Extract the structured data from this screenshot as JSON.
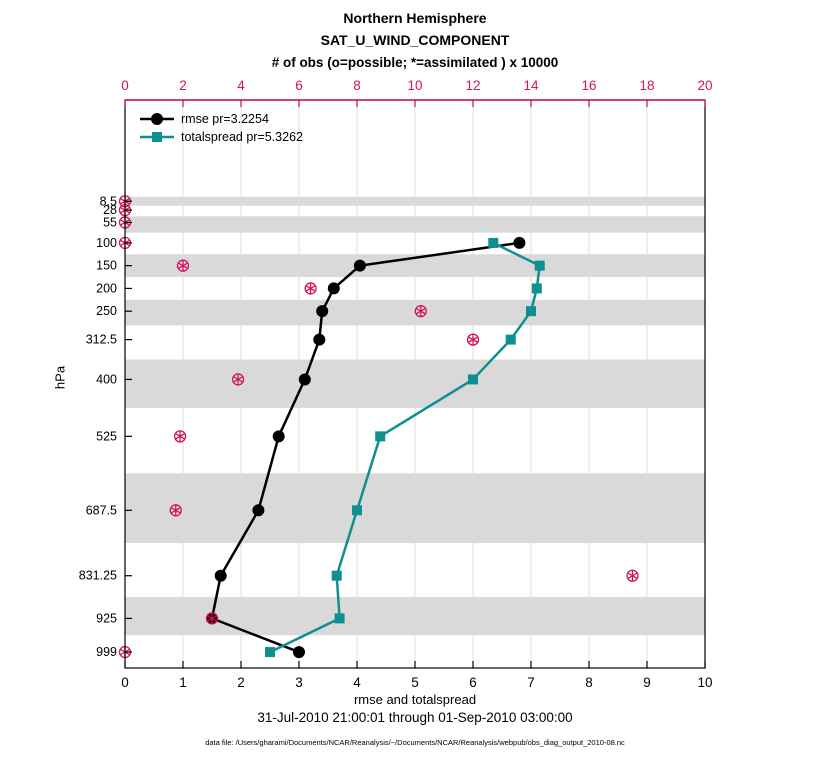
{
  "chart_data": {
    "type": "line",
    "title": "Northern Hemisphere",
    "subtitle": "SAT_U_WIND_COMPONENT",
    "top_axis_title": "# of obs (o=possible; *=assimilated ) x 10000",
    "xlabel": "rmse and totalspread",
    "ylabel": "hPa",
    "footer_dates": "31-Jul-2010 21:00:01 through 01-Sep-2010 03:00:00",
    "footer_datafile": "data file: /Users/gharami/Documents/NCAR/Reanalysis/~/Documents/NCAR/Reanalysis/webpub/obs_diag_output_2010-08.nc",
    "colors": {
      "obs_pink": "#d2135c",
      "rmse_black": "#000000",
      "totalspread_teal": "#0f8f8f",
      "band_gray": "#d9d9d9",
      "gridline": "#dcdcdc"
    },
    "x_bottom": {
      "min": 0,
      "max": 10,
      "ticks": [
        0,
        1,
        2,
        3,
        4,
        5,
        6,
        7,
        8,
        9,
        10
      ]
    },
    "x_top": {
      "min": 0,
      "max": 20,
      "ticks": [
        0,
        2,
        4,
        6,
        8,
        10,
        12,
        14,
        16,
        18,
        20
      ]
    },
    "levels": [
      8.5,
      28,
      55,
      100,
      150,
      200,
      250,
      312.5,
      400,
      525,
      687.5,
      831.25,
      925,
      999
    ],
    "series": [
      {
        "name": "rmse pr=3.2254",
        "marker": "circle",
        "color": "#000000",
        "points": [
          {
            "level": 100,
            "value": 6.8
          },
          {
            "level": 150,
            "value": 4.05
          },
          {
            "level": 200,
            "value": 3.6
          },
          {
            "level": 250,
            "value": 3.4
          },
          {
            "level": 312.5,
            "value": 3.35
          },
          {
            "level": 400,
            "value": 3.1
          },
          {
            "level": 525,
            "value": 2.65
          },
          {
            "level": 687.5,
            "value": 2.3
          },
          {
            "level": 831.25,
            "value": 1.65
          },
          {
            "level": 925,
            "value": 1.5
          },
          {
            "level": 999,
            "value": 3.0
          }
        ]
      },
      {
        "name": "totalspread pr=5.3262",
        "marker": "square",
        "color": "#0f8f8f",
        "points": [
          {
            "level": 100,
            "value": 6.35
          },
          {
            "level": 150,
            "value": 7.15
          },
          {
            "level": 200,
            "value": 7.1
          },
          {
            "level": 250,
            "value": 7.0
          },
          {
            "level": 312.5,
            "value": 6.65
          },
          {
            "level": 400,
            "value": 6.0
          },
          {
            "level": 525,
            "value": 4.4
          },
          {
            "level": 687.5,
            "value": 4.0
          },
          {
            "level": 831.25,
            "value": 3.65
          },
          {
            "level": 925,
            "value": 3.7
          },
          {
            "level": 999,
            "value": 2.5
          }
        ]
      }
    ],
    "obs_counts_x10000": [
      {
        "level": 8.5,
        "value": 0
      },
      {
        "level": 28,
        "value": 0
      },
      {
        "level": 55,
        "value": 0
      },
      {
        "level": 100,
        "value": 0
      },
      {
        "level": 150,
        "value": 2.0
      },
      {
        "level": 200,
        "value": 6.4
      },
      {
        "level": 250,
        "value": 10.2
      },
      {
        "level": 312.5,
        "value": 12.0
      },
      {
        "level": 400,
        "value": 3.9
      },
      {
        "level": 525,
        "value": 1.9
      },
      {
        "level": 687.5,
        "value": 1.75
      },
      {
        "level": 831.25,
        "value": 17.5
      },
      {
        "level": 925,
        "value": 3.0
      },
      {
        "level": 999,
        "value": 0
      }
    ]
  }
}
